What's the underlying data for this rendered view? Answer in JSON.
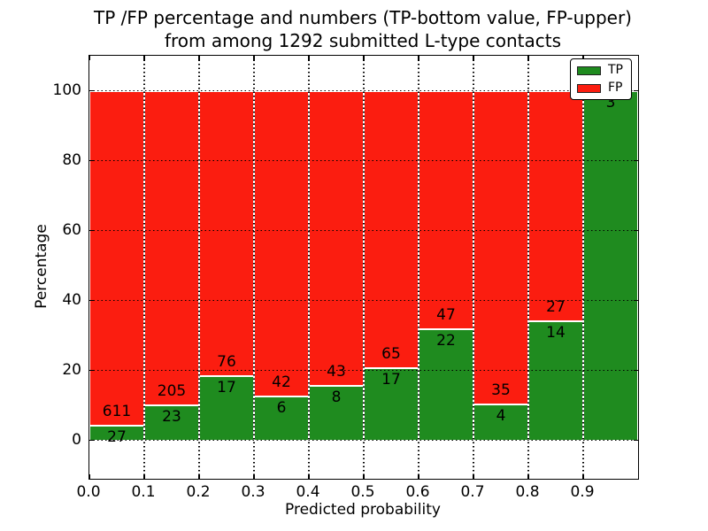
{
  "figure": {
    "title_line1": "TP /FP percentage and numbers (TP-bottom value, FP-upper)",
    "title_line2": "from among 1292 submitted L-type contacts",
    "background": "#ffffff",
    "total_submitted": 1292
  },
  "chart_data": {
    "type": "bar",
    "stacked": true,
    "title": "TP /FP percentage and numbers (TP-bottom value, FP-upper) from among 1292 submitted L-type contacts",
    "xlabel": "Predicted probability",
    "ylabel": "Percentage",
    "xlim": [
      0.0,
      1.0
    ],
    "ylim": [
      -11,
      110
    ],
    "grid": true,
    "grid_style": "dotted",
    "bar_edge_color": "#ffffff",
    "x_ticks": [
      0.0,
      0.1,
      0.2,
      0.3,
      0.4,
      0.5,
      0.6,
      0.7,
      0.8,
      0.9
    ],
    "x_tick_labels": [
      "0.0",
      "0.1",
      "0.2",
      "0.3",
      "0.4",
      "0.5",
      "0.6",
      "0.7",
      "0.8",
      "0.9"
    ],
    "y_ticks": [
      0,
      20,
      40,
      60,
      80,
      100
    ],
    "y_tick_labels": [
      "0",
      "20",
      "40",
      "60",
      "80",
      "100"
    ],
    "bin_width": 0.1,
    "categories": [
      "0.0-0.1",
      "0.1-0.2",
      "0.2-0.3",
      "0.3-0.4",
      "0.4-0.5",
      "0.5-0.6",
      "0.6-0.7",
      "0.7-0.8",
      "0.8-0.9",
      "0.9-1.0"
    ],
    "series": [
      {
        "name": "TP",
        "color": "#1f8b1f",
        "position": "bottom",
        "counts": [
          27,
          23,
          17,
          6,
          8,
          17,
          22,
          4,
          14,
          3
        ]
      },
      {
        "name": "FP",
        "color": "#fb1d10",
        "position": "top",
        "counts": [
          611,
          205,
          76,
          42,
          43,
          65,
          47,
          35,
          27,
          0
        ]
      }
    ],
    "bins": [
      {
        "x0": 0.0,
        "tp": 27,
        "fp": 611,
        "tp_pct": 4.23
      },
      {
        "x0": 0.1,
        "tp": 23,
        "fp": 205,
        "tp_pct": 10.09
      },
      {
        "x0": 0.2,
        "tp": 17,
        "fp": 76,
        "tp_pct": 18.28
      },
      {
        "x0": 0.3,
        "tp": 6,
        "fp": 42,
        "tp_pct": 12.5
      },
      {
        "x0": 0.4,
        "tp": 8,
        "fp": 43,
        "tp_pct": 15.69
      },
      {
        "x0": 0.5,
        "tp": 17,
        "fp": 65,
        "tp_pct": 20.73
      },
      {
        "x0": 0.6,
        "tp": 22,
        "fp": 47,
        "tp_pct": 31.88
      },
      {
        "x0": 0.7,
        "tp": 4,
        "fp": 35,
        "tp_pct": 10.26
      },
      {
        "x0": 0.8,
        "tp": 14,
        "fp": 27,
        "tp_pct": 34.15
      },
      {
        "x0": 0.9,
        "tp": 3,
        "fp": 0,
        "tp_pct": 100.0
      }
    ],
    "legend": {
      "position": "upper right",
      "entries": [
        {
          "label": "TP",
          "color": "#1f8b1f"
        },
        {
          "label": "FP",
          "color": "#fb1d10"
        }
      ]
    }
  }
}
